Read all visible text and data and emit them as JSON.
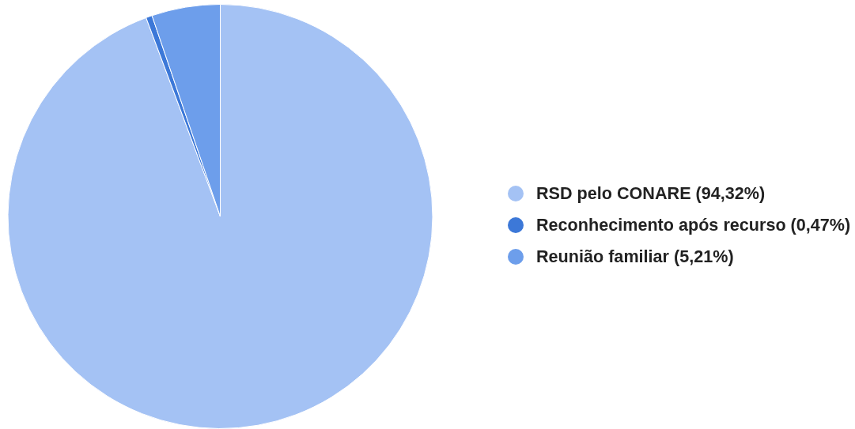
{
  "chart_data": {
    "type": "pie",
    "categories": [
      "RSD pelo CONARE (94,32%)",
      "Reconhecimento após recurso (0,47%)",
      "Reunião familiar (5,21%)"
    ],
    "values": [
      94.32,
      0.47,
      5.21
    ],
    "colors": [
      "#a4c2f4",
      "#3c78d8",
      "#6d9eeb"
    ],
    "legend": "right"
  }
}
